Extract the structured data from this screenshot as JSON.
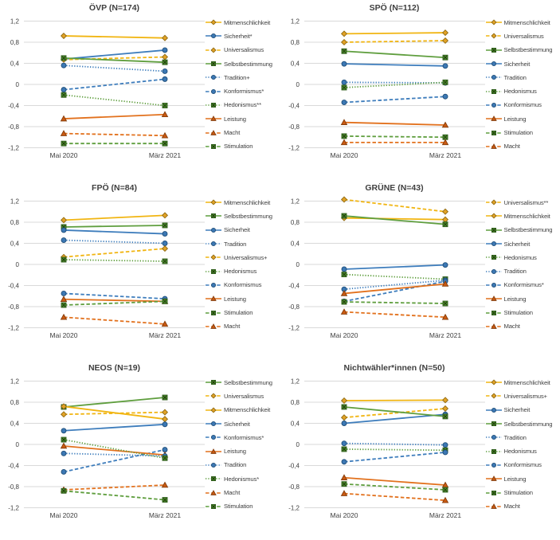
{
  "figure": {
    "description": "Wertewandel nach Parteipräferenz, Mai 2020 vs. März 2021",
    "grid_color": "#d9d9d9",
    "text_color": "#404040",
    "background": "#ffffff"
  },
  "styles": {
    "colors": {
      "gold": {
        "line": "#F1B512",
        "fill": "#E2A226",
        "stroke": "#8F6A12"
      },
      "blue": {
        "line": "#3E7DBC",
        "fill": "#3C78B4",
        "stroke": "#1F4E79"
      },
      "green": {
        "line": "#5F9E3E",
        "fill": "#4C8A2D",
        "stroke": "#2E5B1A"
      },
      "orange": {
        "line": "#E2711D",
        "fill": "#CB5A11",
        "stroke": "#833C0B"
      }
    }
  },
  "chart_data": [
    {
      "type": "line",
      "title": "ÖVP (N=174)",
      "categories": [
        "Mai 2020",
        "März 2021"
      ],
      "ylim": [
        -1.2,
        1.2
      ],
      "yticks": [
        {
          "value": 1.2,
          "label": "1,2"
        },
        {
          "value": 0.8,
          "label": "0,8"
        },
        {
          "value": 0.4,
          "label": "0,4"
        },
        {
          "value": 0,
          "label": "0"
        },
        {
          "value": -0.4,
          "label": "-0,4"
        },
        {
          "value": -0.8,
          "label": "-0,8"
        },
        {
          "value": -1.2,
          "label": "-1,2"
        }
      ],
      "grid": true,
      "legend_position": "right",
      "series": [
        {
          "name": "Mitmenschlichkeit",
          "color": "gold",
          "dash": "solid",
          "marker": "diamond",
          "values": [
            0.92,
            0.88
          ]
        },
        {
          "name": "Sicherheit*",
          "color": "blue",
          "dash": "solid",
          "marker": "circle",
          "values": [
            0.48,
            0.65
          ]
        },
        {
          "name": "Universalismus",
          "color": "gold",
          "dash": "dashed",
          "marker": "diamond",
          "values": [
            0.47,
            0.52
          ]
        },
        {
          "name": "Selbstbestimmung",
          "color": "green",
          "dash": "solid",
          "marker": "xsquare",
          "values": [
            0.5,
            0.42
          ]
        },
        {
          "name": "Tradition+",
          "color": "blue",
          "dash": "dotted",
          "marker": "circle",
          "values": [
            0.36,
            0.25
          ]
        },
        {
          "name": "Konformismus*",
          "color": "blue",
          "dash": "dashed",
          "marker": "circle",
          "values": [
            -0.1,
            0.1
          ]
        },
        {
          "name": "Hedonismus**",
          "color": "green",
          "dash": "dotted",
          "marker": "xsquare",
          "values": [
            -0.2,
            -0.4
          ]
        },
        {
          "name": "Leistung",
          "color": "orange",
          "dash": "solid",
          "marker": "triangle",
          "values": [
            -0.65,
            -0.57
          ]
        },
        {
          "name": "Macht",
          "color": "orange",
          "dash": "dashed",
          "marker": "triangle",
          "values": [
            -0.93,
            -0.97
          ]
        },
        {
          "name": "Stimulation",
          "color": "green",
          "dash": "dashed",
          "marker": "xsquare",
          "values": [
            -1.12,
            -1.12
          ]
        }
      ]
    },
    {
      "type": "line",
      "title": "SPÖ (N=112)",
      "categories": [
        "Mai 2020",
        "März 2021"
      ],
      "ylim": [
        -1.2,
        1.2
      ],
      "yticks": [
        {
          "value": 1.2,
          "label": "1,2"
        },
        {
          "value": 0.8,
          "label": "0,8"
        },
        {
          "value": 0.4,
          "label": "0,4"
        },
        {
          "value": 0,
          "label": "0"
        },
        {
          "value": -0.4,
          "label": "-0,4"
        },
        {
          "value": -0.8,
          "label": "-0,8"
        },
        {
          "value": -1.2,
          "label": "-1,2"
        }
      ],
      "grid": true,
      "legend_position": "right",
      "series": [
        {
          "name": "Mitmenschlichkeit",
          "color": "gold",
          "dash": "solid",
          "marker": "diamond",
          "values": [
            0.96,
            0.98
          ]
        },
        {
          "name": "Universalismus",
          "color": "gold",
          "dash": "dashed",
          "marker": "diamond",
          "values": [
            0.8,
            0.83
          ]
        },
        {
          "name": "Selbstbestimmung",
          "color": "green",
          "dash": "solid",
          "marker": "xsquare",
          "values": [
            0.63,
            0.51
          ]
        },
        {
          "name": "Sicherheit",
          "color": "blue",
          "dash": "solid",
          "marker": "circle",
          "values": [
            0.39,
            0.35
          ]
        },
        {
          "name": "Tradition",
          "color": "blue",
          "dash": "dotted",
          "marker": "circle",
          "values": [
            0.04,
            0.03
          ]
        },
        {
          "name": "Hedonismus",
          "color": "green",
          "dash": "dotted",
          "marker": "xsquare",
          "values": [
            -0.06,
            0.04
          ]
        },
        {
          "name": "Konformismus",
          "color": "blue",
          "dash": "dashed",
          "marker": "circle",
          "values": [
            -0.34,
            -0.23
          ]
        },
        {
          "name": "Leistung",
          "color": "orange",
          "dash": "solid",
          "marker": "triangle",
          "values": [
            -0.72,
            -0.77
          ]
        },
        {
          "name": "Stimulation",
          "color": "green",
          "dash": "dashed",
          "marker": "xsquare",
          "values": [
            -0.98,
            -1.0
          ]
        },
        {
          "name": "Macht",
          "color": "orange",
          "dash": "dashed",
          "marker": "triangle",
          "values": [
            -1.1,
            -1.1
          ]
        }
      ]
    },
    {
      "type": "line",
      "title": "FPÖ (N=84)",
      "categories": [
        "Mai 2020",
        "März 2021"
      ],
      "ylim": [
        -1.2,
        1.2
      ],
      "yticks": [
        {
          "value": 1.2,
          "label": "1,2"
        },
        {
          "value": 0.8,
          "label": "0,8"
        },
        {
          "value": 0.4,
          "label": "0,4"
        },
        {
          "value": 0,
          "label": "0"
        },
        {
          "value": -0.4,
          "label": "-0,4"
        },
        {
          "value": -0.8,
          "label": "-0,8"
        },
        {
          "value": -1.2,
          "label": "-1,2"
        }
      ],
      "grid": true,
      "legend_position": "right",
      "series": [
        {
          "name": "Mitmenschlichkeit",
          "color": "gold",
          "dash": "solid",
          "marker": "diamond",
          "values": [
            0.84,
            0.93
          ]
        },
        {
          "name": "Selbstbestimmung",
          "color": "green",
          "dash": "solid",
          "marker": "xsquare",
          "values": [
            0.71,
            0.74
          ]
        },
        {
          "name": "Sicherheit",
          "color": "blue",
          "dash": "solid",
          "marker": "circle",
          "values": [
            0.65,
            0.58
          ]
        },
        {
          "name": "Tradition",
          "color": "blue",
          "dash": "dotted",
          "marker": "circle",
          "values": [
            0.46,
            0.4
          ]
        },
        {
          "name": "Universalismus+",
          "color": "gold",
          "dash": "dashed",
          "marker": "diamond",
          "values": [
            0.14,
            0.3
          ]
        },
        {
          "name": "Hedonismus",
          "color": "green",
          "dash": "dotted",
          "marker": "xsquare",
          "values": [
            0.09,
            0.06
          ]
        },
        {
          "name": "Konformismus",
          "color": "blue",
          "dash": "dashed",
          "marker": "circle",
          "values": [
            -0.55,
            -0.65
          ]
        },
        {
          "name": "Leistung",
          "color": "orange",
          "dash": "solid",
          "marker": "triangle",
          "values": [
            -0.66,
            -0.7
          ]
        },
        {
          "name": "Stimulation",
          "color": "green",
          "dash": "dashed",
          "marker": "xsquare",
          "values": [
            -0.77,
            -0.7
          ]
        },
        {
          "name": "Macht",
          "color": "orange",
          "dash": "dashed",
          "marker": "triangle",
          "values": [
            -1.0,
            -1.13
          ]
        }
      ]
    },
    {
      "type": "line",
      "title": "GRÜNE (N=43)",
      "categories": [
        "Mai 2020",
        "März 2021"
      ],
      "ylim": [
        -1.2,
        1.2
      ],
      "yticks": [
        {
          "value": 1.2,
          "label": "1,2"
        },
        {
          "value": 0.8,
          "label": "0,8"
        },
        {
          "value": 0.4,
          "label": "0,4"
        },
        {
          "value": 0,
          "label": "0"
        },
        {
          "value": -0.4,
          "label": "-0,4"
        },
        {
          "value": -0.8,
          "label": "-0,8"
        },
        {
          "value": -1.2,
          "label": "-1,2"
        }
      ],
      "grid": true,
      "legend_position": "right",
      "series": [
        {
          "name": "Universalismus**",
          "color": "gold",
          "dash": "dashed",
          "marker": "diamond",
          "values": [
            1.23,
            1.0
          ]
        },
        {
          "name": "Mitmenschlichkeit",
          "color": "gold",
          "dash": "solid",
          "marker": "diamond",
          "values": [
            0.88,
            0.85
          ]
        },
        {
          "name": "Selbstbestimmung",
          "color": "green",
          "dash": "solid",
          "marker": "xsquare",
          "values": [
            0.92,
            0.76
          ]
        },
        {
          "name": "Sicherheit",
          "color": "blue",
          "dash": "solid",
          "marker": "circle",
          "values": [
            -0.09,
            -0.01
          ]
        },
        {
          "name": "Hedonismus",
          "color": "green",
          "dash": "dotted",
          "marker": "xsquare",
          "values": [
            -0.19,
            -0.28
          ]
        },
        {
          "name": "Tradition",
          "color": "blue",
          "dash": "dotted",
          "marker": "circle",
          "values": [
            -0.47,
            -0.3
          ]
        },
        {
          "name": "Konformismus*",
          "color": "blue",
          "dash": "dashed",
          "marker": "circle",
          "values": [
            -0.7,
            -0.32
          ]
        },
        {
          "name": "Leistung",
          "color": "orange",
          "dash": "solid",
          "marker": "triangle",
          "values": [
            -0.55,
            -0.37
          ]
        },
        {
          "name": "Stimulation",
          "color": "green",
          "dash": "dashed",
          "marker": "xsquare",
          "values": [
            -0.71,
            -0.74
          ]
        },
        {
          "name": "Macht",
          "color": "orange",
          "dash": "dashed",
          "marker": "triangle",
          "values": [
            -0.9,
            -1.0
          ]
        }
      ]
    },
    {
      "type": "line",
      "title": "NEOS (N=19)",
      "categories": [
        "Mai 2020",
        "März 2021"
      ],
      "ylim": [
        -1.2,
        1.2
      ],
      "yticks": [
        {
          "value": 1.2,
          "label": "1,2"
        },
        {
          "value": 0.8,
          "label": "0,8"
        },
        {
          "value": 0.4,
          "label": "0,4"
        },
        {
          "value": 0,
          "label": "0"
        },
        {
          "value": -0.4,
          "label": "-0,4"
        },
        {
          "value": -0.8,
          "label": "-0,8"
        },
        {
          "value": -1.2,
          "label": "-1,2"
        }
      ],
      "grid": true,
      "legend_position": "right",
      "series": [
        {
          "name": "Selbstbestimmung",
          "color": "green",
          "dash": "solid",
          "marker": "xsquare",
          "values": [
            0.71,
            0.89
          ]
        },
        {
          "name": "Universalismus",
          "color": "gold",
          "dash": "dashed",
          "marker": "diamond",
          "values": [
            0.57,
            0.61
          ]
        },
        {
          "name": "Mitmenschlichkeit",
          "color": "gold",
          "dash": "solid",
          "marker": "diamond",
          "values": [
            0.72,
            0.48
          ]
        },
        {
          "name": "Sicherheit",
          "color": "blue",
          "dash": "solid",
          "marker": "circle",
          "values": [
            0.26,
            0.38
          ]
        },
        {
          "name": "Konformismus*",
          "color": "blue",
          "dash": "dashed",
          "marker": "circle",
          "values": [
            -0.52,
            -0.1
          ]
        },
        {
          "name": "Leistung",
          "color": "orange",
          "dash": "solid",
          "marker": "triangle",
          "values": [
            -0.03,
            -0.2
          ]
        },
        {
          "name": "Tradition",
          "color": "blue",
          "dash": "dotted",
          "marker": "circle",
          "values": [
            -0.17,
            -0.22
          ]
        },
        {
          "name": "Hedonismus*",
          "color": "green",
          "dash": "dotted",
          "marker": "xsquare",
          "values": [
            0.09,
            -0.26
          ]
        },
        {
          "name": "Macht",
          "color": "orange",
          "dash": "dashed",
          "marker": "triangle",
          "values": [
            -0.86,
            -0.77
          ]
        },
        {
          "name": "Stimulation",
          "color": "green",
          "dash": "dashed",
          "marker": "xsquare",
          "values": [
            -0.88,
            -1.05
          ]
        }
      ]
    },
    {
      "type": "line",
      "title": "Nichtwähler*innen (N=50)",
      "categories": [
        "Mai 2020",
        "März 2021"
      ],
      "ylim": [
        -1.2,
        1.2
      ],
      "yticks": [
        {
          "value": 1.2,
          "label": "1,2"
        },
        {
          "value": 0.8,
          "label": "0,8"
        },
        {
          "value": 0.4,
          "label": "0,4"
        },
        {
          "value": 0,
          "label": "0"
        },
        {
          "value": -0.4,
          "label": "-0,4"
        },
        {
          "value": -0.8,
          "label": "-0,8"
        },
        {
          "value": -1.2,
          "label": "-1,2"
        }
      ],
      "grid": true,
      "legend_position": "right",
      "series": [
        {
          "name": "Mitmenschlichkeit",
          "color": "gold",
          "dash": "solid",
          "marker": "diamond",
          "values": [
            0.83,
            0.84
          ]
        },
        {
          "name": "Universalismus+",
          "color": "gold",
          "dash": "dashed",
          "marker": "diamond",
          "values": [
            0.51,
            0.68
          ]
        },
        {
          "name": "Sicherheit",
          "color": "blue",
          "dash": "solid",
          "marker": "circle",
          "values": [
            0.4,
            0.57
          ]
        },
        {
          "name": "Selbstbestimmung",
          "color": "green",
          "dash": "solid",
          "marker": "xsquare",
          "values": [
            0.71,
            0.53
          ]
        },
        {
          "name": "Tradition",
          "color": "blue",
          "dash": "dotted",
          "marker": "circle",
          "values": [
            0.02,
            -0.01
          ]
        },
        {
          "name": "Hedonismus",
          "color": "green",
          "dash": "dotted",
          "marker": "xsquare",
          "values": [
            -0.09,
            -0.11
          ]
        },
        {
          "name": "Konformismus",
          "color": "blue",
          "dash": "dashed",
          "marker": "circle",
          "values": [
            -0.33,
            -0.15
          ]
        },
        {
          "name": "Leistung",
          "color": "orange",
          "dash": "solid",
          "marker": "triangle",
          "values": [
            -0.63,
            -0.77
          ]
        },
        {
          "name": "Stimulation",
          "color": "green",
          "dash": "dashed",
          "marker": "xsquare",
          "values": [
            -0.75,
            -0.86
          ]
        },
        {
          "name": "Macht",
          "color": "orange",
          "dash": "dashed",
          "marker": "triangle",
          "values": [
            -0.93,
            -1.06
          ]
        }
      ]
    }
  ]
}
